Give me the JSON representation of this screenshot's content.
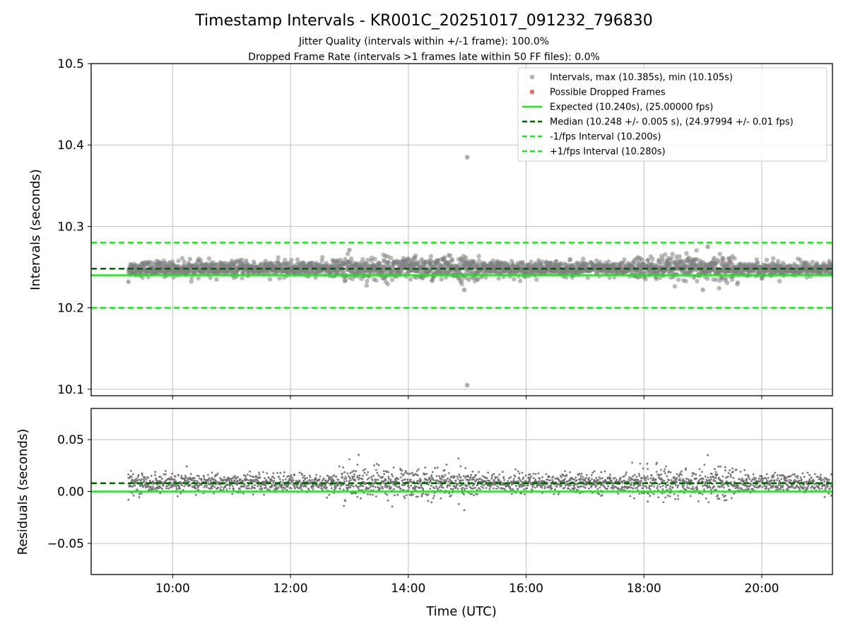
{
  "chart_data": [
    {
      "type": "scatter",
      "title": "Timestamp Intervals - KR001C_20251017_091232_796830",
      "subtitle_lines": [
        "Jitter Quality (intervals within +/-1 frame): 100.0%",
        "Dropped Frame Rate (intervals >1 frames late within 50 FF files): 0.0%"
      ],
      "xlabel": "",
      "ylabel": "Intervals (seconds)",
      "xlim": [
        "08:37",
        "21:12"
      ],
      "ylim": [
        10.092,
        10.5
      ],
      "x_ticks": [
        "10:00",
        "12:00",
        "14:00",
        "16:00",
        "18:00",
        "20:00"
      ],
      "x_tick_values_hours": [
        10,
        12,
        14,
        16,
        18,
        20
      ],
      "y_ticks": [
        "10.1",
        "10.2",
        "10.3",
        "10.4",
        "10.5"
      ],
      "y_tick_values": [
        10.1,
        10.2,
        10.3,
        10.4,
        10.5
      ],
      "grid": true,
      "legend_position": "top-right",
      "legend": [
        "Intervals, max (10.385s), min (10.105s)",
        "Possible Dropped Frames",
        "Expected (10.240s), (25.00000 fps)",
        "Median (10.248 +/- 0.005 s), (24.97994 +/- 0.01 fps)",
        "-1/fps Interval (10.200s)",
        "+1/fps Interval (10.280s)"
      ],
      "series": [
        {
          "name": "Intervals, max (10.385s), min (10.105s)",
          "kind": "scatter",
          "color": "#808080",
          "x_range": [
            "09:15",
            "21:12"
          ],
          "center": 10.248,
          "spread": 0.005,
          "outliers": [
            {
              "x": "15:00",
              "y": 10.385
            },
            {
              "x": "15:00",
              "y": 10.105
            },
            {
              "x": "19:05",
              "y": 10.275
            },
            {
              "x": "13:00",
              "y": 10.271
            },
            {
              "x": "14:57",
              "y": 10.222
            },
            {
              "x": "19:00",
              "y": 10.222
            },
            {
              "x": "09:15",
              "y": 10.232
            }
          ]
        },
        {
          "name": "Possible Dropped Frames",
          "kind": "scatter",
          "color": "#e8474f",
          "points": []
        },
        {
          "name": "Expected (10.240s), (25.00000 fps)",
          "kind": "hline",
          "y": 10.24,
          "style": "solid",
          "color": "#1ee51e"
        },
        {
          "name": "Median (10.248 +/- 0.005 s), (24.97994 +/- 0.01 fps)",
          "kind": "hline",
          "y": 10.248,
          "style": "dashed",
          "color": "#006400"
        },
        {
          "name": "-1/fps Interval (10.200s)",
          "kind": "hline",
          "y": 10.2,
          "style": "dashed",
          "color": "#1ee51e"
        },
        {
          "name": "+1/fps Interval (10.280s)",
          "kind": "hline",
          "y": 10.28,
          "style": "dashed",
          "color": "#1ee51e"
        }
      ]
    },
    {
      "type": "scatter",
      "title": "",
      "xlabel": "Time (UTC)",
      "ylabel": "Residuals (seconds)",
      "xlim": [
        "08:37",
        "21:12"
      ],
      "ylim": [
        -0.08,
        0.08
      ],
      "x_ticks": [
        "10:00",
        "12:00",
        "14:00",
        "16:00",
        "18:00",
        "20:00"
      ],
      "x_tick_values_hours": [
        10,
        12,
        14,
        16,
        18,
        20
      ],
      "y_ticks": [
        "0.05",
        "0.00",
        "−0.05"
      ],
      "y_tick_values": [
        0.05,
        0.0,
        -0.05
      ],
      "grid": true,
      "series": [
        {
          "name": "",
          "kind": "scatter",
          "color": "#707070",
          "x_range": [
            "09:15",
            "21:12"
          ],
          "center": 0.008,
          "spread": 0.005,
          "outliers": [
            {
              "x": "19:05",
              "y": 0.035
            },
            {
              "x": "13:00",
              "y": 0.031
            },
            {
              "x": "14:57",
              "y": -0.018
            },
            {
              "x": "09:15",
              "y": -0.008
            }
          ]
        },
        {
          "name": "",
          "kind": "hline",
          "y": 0.0,
          "style": "solid",
          "color": "#1ee51e"
        },
        {
          "name": "",
          "kind": "hline",
          "y": 0.008,
          "style": "dashed",
          "color": "#006400"
        }
      ]
    }
  ]
}
